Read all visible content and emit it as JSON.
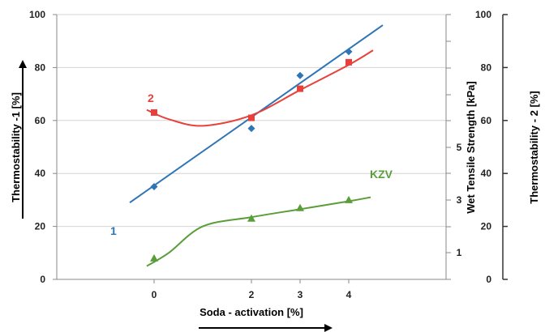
{
  "chart_data": {
    "type": "scatter",
    "xlabel": "Soda - activation [%]",
    "x_ticks": [
      "0",
      "2",
      "3",
      "4"
    ],
    "x_range": [
      -2,
      6
    ],
    "y_left": {
      "label": "Thermostability -1 [%]",
      "ylim": [
        0,
        100
      ],
      "ticks": [
        "0",
        "20",
        "40",
        "60",
        "80",
        "100"
      ]
    },
    "y_middle": {
      "label": "Wet Tensile Strength [kPa]",
      "ticks": [
        "1",
        "3",
        "5"
      ]
    },
    "y_right": {
      "label": "Thermostability - 2 [%]",
      "ticks": [
        "0",
        "20",
        "40",
        "60",
        "80",
        "100"
      ]
    },
    "grid": true,
    "series": [
      {
        "name": "1",
        "color": "#2e75b6",
        "marker": "diamond",
        "x": [
          0,
          2,
          3,
          4
        ],
        "y": [
          35,
          57,
          77,
          86
        ],
        "fit": "linear",
        "fit_x": [
          -0.5,
          4.7
        ],
        "fit_y": [
          29,
          96
        ]
      },
      {
        "name": "2",
        "color": "#e8403a",
        "marker": "square",
        "x": [
          0,
          2,
          3,
          4
        ],
        "y": [
          63,
          61,
          72,
          82
        ],
        "fit": "smooth",
        "fit_x": [
          -0.15,
          0.3,
          1.0,
          2.0,
          3.0,
          4.0,
          4.5
        ],
        "fit_y": [
          64,
          60.5,
          58,
          62,
          71.5,
          81,
          86.5
        ]
      },
      {
        "name": "KZV",
        "color": "#5a9e3a",
        "marker": "triangle",
        "x": [
          0,
          2,
          3,
          4
        ],
        "y": [
          8,
          23,
          27,
          30
        ],
        "fit": "smooth",
        "fit_x": [
          -0.15,
          0.3,
          1.0,
          2.0,
          3.0,
          4.0,
          4.45
        ],
        "fit_y": [
          5,
          10,
          20,
          23.5,
          26.5,
          29.5,
          31
        ]
      }
    ]
  }
}
